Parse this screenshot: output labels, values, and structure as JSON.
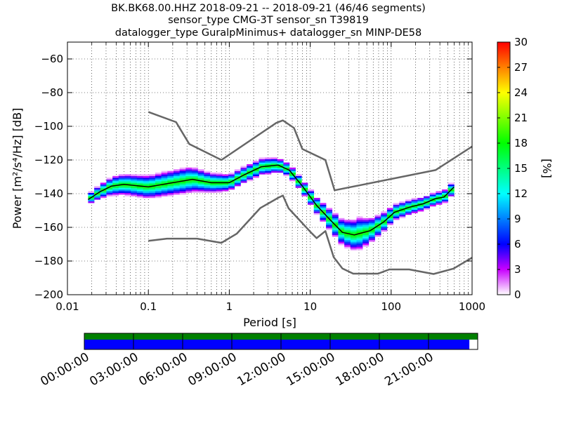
{
  "titles": [
    "BK.BK68.00.HHZ   2018-09-21 -- 2018-09-21  (46/46 segments)",
    "sensor_type CMG-3T sensor_sn T39819",
    "datalogger_type GuralpMinimus+ datalogger_sn MINP-DE58"
  ],
  "chart_data": {
    "type": "heatmap",
    "xlabel": "Period [s]",
    "ylabel": "Power [m²/s⁴/Hz] [dB]",
    "xscale": "log",
    "xlim": [
      0.01,
      1000
    ],
    "ylim": [
      -200,
      -50
    ],
    "x_ticks": [
      {
        "value": 0.01,
        "label": "0.01"
      },
      {
        "value": 0.1,
        "label": "0.1"
      },
      {
        "value": 1,
        "label": "1"
      },
      {
        "value": 10,
        "label": "10"
      },
      {
        "value": 100,
        "label": "100"
      },
      {
        "value": 1000,
        "label": "1000"
      }
    ],
    "y_ticks": [
      {
        "value": -200,
        "label": "−200"
      },
      {
        "value": -180,
        "label": "−180"
      },
      {
        "value": -160,
        "label": "−160"
      },
      {
        "value": -140,
        "label": "−140"
      },
      {
        "value": -120,
        "label": "−120"
      },
      {
        "value": -100,
        "label": "−100"
      },
      {
        "value": -80,
        "label": "−80"
      },
      {
        "value": -60,
        "label": "−60"
      }
    ],
    "grid": true,
    "colorbar": {
      "label": "[%]",
      "range": [
        0,
        30
      ],
      "ticks": [
        {
          "value": 0,
          "label": "0"
        },
        {
          "value": 3,
          "label": "3"
        },
        {
          "value": 6,
          "label": "6"
        },
        {
          "value": 9,
          "label": "9"
        },
        {
          "value": 12,
          "label": "12"
        },
        {
          "value": 15,
          "label": "15"
        },
        {
          "value": 18,
          "label": "18"
        },
        {
          "value": 21,
          "label": "21"
        },
        {
          "value": 24,
          "label": "24"
        },
        {
          "value": 27,
          "label": "27"
        },
        {
          "value": 30,
          "label": "30"
        }
      ]
    },
    "series": [
      {
        "color": "#666666",
        "values": [
          [
            0.1,
            -91.5
          ],
          [
            0.22,
            -97.5
          ],
          [
            0.32,
            -110.5
          ],
          [
            0.8,
            -120
          ],
          [
            3.8,
            -98
          ],
          [
            4.6,
            -96.5
          ],
          [
            6.3,
            -101
          ],
          [
            8,
            -113.5
          ],
          [
            15.4,
            -120
          ],
          [
            20,
            -138
          ],
          [
            354,
            -126
          ],
          [
            1000,
            -112
          ]
        ]
      },
      {
        "color": "#666666",
        "values": [
          [
            0.1,
            -168
          ],
          [
            0.17,
            -166.7
          ],
          [
            0.4,
            -166.7
          ],
          [
            0.8,
            -169.2
          ],
          [
            1.24,
            -163.7
          ],
          [
            2.41,
            -148.6
          ],
          [
            4.0,
            -142.5
          ],
          [
            4.6,
            -141.1
          ],
          [
            5.4,
            -148.7
          ],
          [
            10,
            -162.6
          ],
          [
            12,
            -166.4
          ],
          [
            15.4,
            -162.2
          ],
          [
            19.5,
            -177.7
          ],
          [
            25,
            -184.4
          ],
          [
            34,
            -187.5
          ],
          [
            69,
            -187.5
          ],
          [
            95,
            -185
          ],
          [
            167,
            -185
          ],
          [
            334,
            -187.7
          ],
          [
            590,
            -184.5
          ],
          [
            1000,
            -178
          ]
        ]
      },
      {
        "color": "#000000",
        "values": [
          [
            0.018,
            -143.5
          ],
          [
            0.025,
            -139
          ],
          [
            0.035,
            -135.5
          ],
          [
            0.05,
            -134.5
          ],
          [
            0.1,
            -136
          ],
          [
            0.2,
            -133.5
          ],
          [
            0.35,
            -131.5
          ],
          [
            0.6,
            -133.5
          ],
          [
            1,
            -133.5
          ],
          [
            1.5,
            -129
          ],
          [
            2.5,
            -124
          ],
          [
            4,
            -123
          ],
          [
            5.5,
            -126
          ],
          [
            8,
            -135.5
          ],
          [
            12,
            -147
          ],
          [
            18,
            -156
          ],
          [
            25,
            -163
          ],
          [
            35,
            -164.5
          ],
          [
            55,
            -162
          ],
          [
            80,
            -157
          ],
          [
            110,
            -151
          ],
          [
            170,
            -148
          ],
          [
            250,
            -146
          ],
          [
            350,
            -143
          ],
          [
            450,
            -142
          ],
          [
            600,
            -136
          ]
        ]
      }
    ],
    "density": {
      "ridge": [
        [
          0.018,
          -143.5
        ],
        [
          0.025,
          -139
        ],
        [
          0.035,
          -135.5
        ],
        [
          0.05,
          -134.5
        ],
        [
          0.1,
          -136
        ],
        [
          0.2,
          -133.5
        ],
        [
          0.35,
          -131.5
        ],
        [
          0.6,
          -133.5
        ],
        [
          1,
          -133.5
        ],
        [
          1.5,
          -129
        ],
        [
          2.5,
          -124
        ],
        [
          4,
          -123
        ],
        [
          5.5,
          -126
        ],
        [
          8,
          -135.5
        ],
        [
          12,
          -147
        ],
        [
          18,
          -156
        ],
        [
          25,
          -163
        ],
        [
          35,
          -164.5
        ],
        [
          55,
          -162
        ],
        [
          80,
          -157
        ],
        [
          110,
          -151
        ],
        [
          170,
          -148
        ],
        [
          250,
          -146
        ],
        [
          350,
          -143
        ],
        [
          450,
          -142
        ],
        [
          600,
          -136
        ]
      ],
      "spread": [
        [
          0.018,
          3
        ],
        [
          0.04,
          6
        ],
        [
          0.1,
          7
        ],
        [
          0.3,
          8
        ],
        [
          0.6,
          6
        ],
        [
          1,
          5
        ],
        [
          3,
          5
        ],
        [
          5,
          4
        ],
        [
          8,
          4
        ],
        [
          12,
          5
        ],
        [
          25,
          8
        ],
        [
          40,
          10
        ],
        [
          60,
          7
        ],
        [
          100,
          5
        ],
        [
          300,
          4
        ],
        [
          700,
          4
        ]
      ],
      "peak_percent": 30
    }
  },
  "availability": {
    "time_labels": [
      "00:00:00",
      "03:00:00",
      "06:00:00",
      "09:00:00",
      "12:00:00",
      "15:00:00",
      "18:00:00",
      "21:00:00"
    ],
    "coverage_fraction": 0.979,
    "gap_fraction": 0.021,
    "colors": {
      "top_bar": "#008000",
      "coverage": "#0000ff",
      "gap": "#ffffff"
    }
  }
}
